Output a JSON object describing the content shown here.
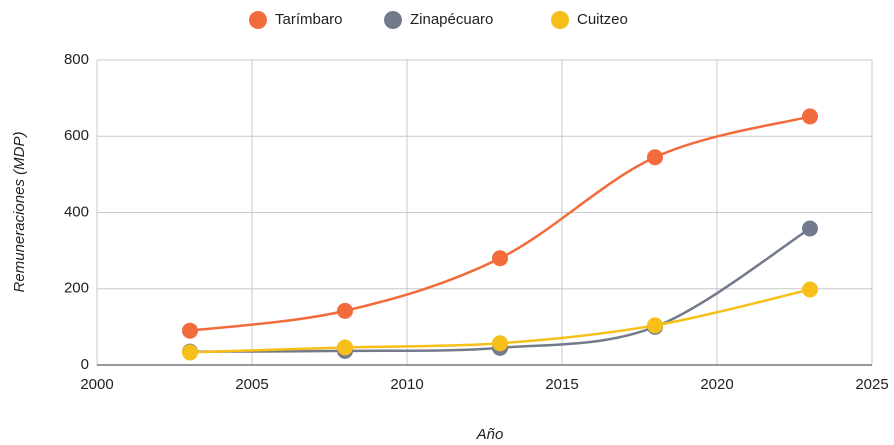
{
  "chart_data": {
    "type": "line",
    "x_label": "Año",
    "y_label": "Remuneraciones (MDP)",
    "x": [
      2003,
      2008,
      2013,
      2018,
      2023
    ],
    "series": [
      {
        "name": "Tarímbaro",
        "color": "#f26b3a",
        "values": [
          90,
          142,
          280,
          545,
          652
        ]
      },
      {
        "name": "Zinapécuaro",
        "color": "#737a8c",
        "values": [
          35,
          37,
          45,
          100,
          358
        ]
      },
      {
        "name": "Cuitzeo",
        "color": "#f6bf1a",
        "values": [
          33,
          46,
          57,
          104,
          198
        ]
      }
    ],
    "xlim": [
      2000,
      2025
    ],
    "xticks": [
      2000,
      2005,
      2010,
      2015,
      2020,
      2025
    ],
    "ylim": [
      0,
      800
    ],
    "yticks": [
      0,
      200,
      400,
      600,
      800
    ],
    "grid": true,
    "legend": "top",
    "smooth": true
  }
}
